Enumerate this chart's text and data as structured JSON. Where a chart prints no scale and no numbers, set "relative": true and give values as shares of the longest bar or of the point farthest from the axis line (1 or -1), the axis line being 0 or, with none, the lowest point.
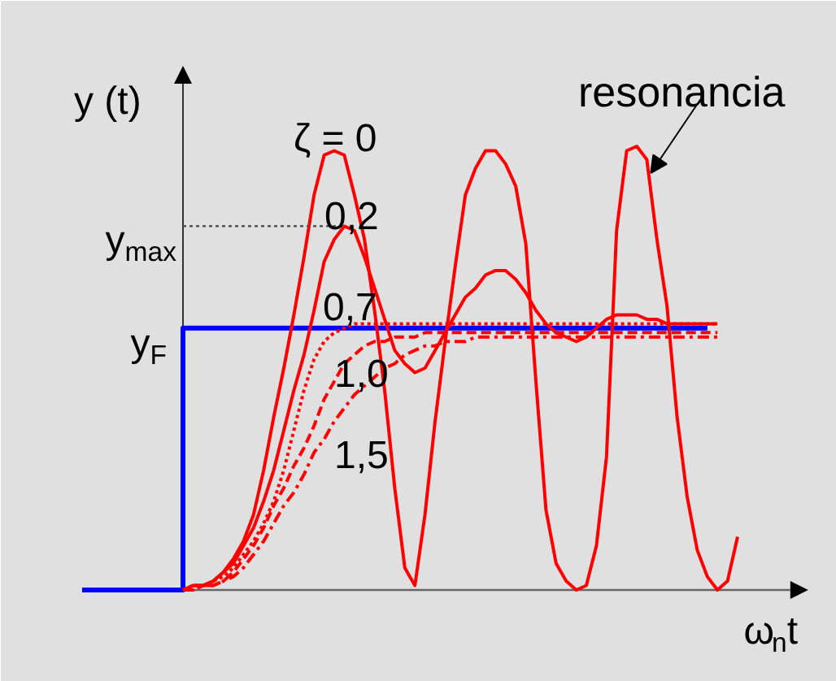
{
  "chart_data": {
    "type": "line",
    "relative": true,
    "xlabel": "ω$_{n}$t",
    "ylabel": "y (t)",
    "categories": [
      null,
      null,
      null,
      null,
      null,
      null,
      null,
      null,
      null,
      null,
      null,
      null,
      null,
      null,
      null,
      null,
      null,
      null,
      null,
      null,
      null,
      null,
      null,
      null,
      null,
      null,
      null,
      null,
      null,
      null,
      null,
      null,
      null,
      null,
      null,
      null,
      null,
      null,
      null,
      null,
      null,
      null,
      null,
      null,
      null,
      null,
      null,
      null,
      null,
      null,
      null,
      null,
      null,
      null,
      null,
      null,
      null,
      null,
      null,
      null,
      null,
      null,
      null,
      null,
      null,
      null
    ],
    "series": [
      {
        "type": "step",
        "color": "#0000ff",
        "line_style": "solid",
        "values": [
          0,
          0,
          0,
          0,
          0,
          0,
          0,
          0,
          0,
          0,
          0.59,
          0.59,
          0.59,
          0.59,
          0.59,
          0.59,
          0.59,
          0.59,
          0.59,
          0.59,
          0.59,
          0.59,
          0.59,
          0.59,
          0.59,
          0.59,
          0.59,
          0.59,
          0.59,
          0.59,
          0.59,
          0.59,
          0.59,
          0.59,
          0.59,
          0.59,
          0.59,
          0.59,
          0.59,
          0.59,
          0.59,
          0.59,
          0.59,
          0.59,
          0.59,
          0.59,
          0.59,
          0.59,
          0.59,
          0.59,
          0.59,
          0.59,
          0.59,
          0.59,
          0.59,
          0.59,
          0.59,
          0.59,
          0.59,
          0.59,
          0.59,
          0.59,
          0.59,
          null,
          null,
          null
        ]
      },
      {
        "name": "ζ = 0",
        "color": "#ff0000",
        "line_style": "solid",
        "values": [
          null,
          null,
          null,
          null,
          null,
          null,
          null,
          null,
          null,
          null,
          0,
          0.01,
          0.01,
          0.02,
          0.04,
          0.07,
          0.11,
          0.17,
          0.27,
          0.39,
          0.5,
          0.62,
          0.75,
          0.89,
          0.98,
          0.99,
          0.98,
          0.89,
          0.79,
          0.63,
          0.45,
          0.23,
          0.05,
          0.01,
          0.17,
          0.38,
          0.56,
          0.73,
          0.89,
          0.95,
          0.99,
          0.99,
          0.96,
          0.91,
          0.78,
          0.47,
          0.18,
          0.06,
          0.02,
          0,
          0.01,
          0.1,
          0.3,
          0.81,
          0.99,
          1.0,
          0.97,
          0.79,
          0.64,
          0.39,
          0.21,
          0.09,
          0.03,
          0,
          0.02,
          0.12
        ]
      },
      {
        "name": "0,2",
        "color": "#ff0000",
        "line_style": "solid",
        "values": [
          null,
          null,
          null,
          null,
          null,
          null,
          null,
          null,
          null,
          null,
          0,
          0.01,
          0.01,
          0.02,
          0.04,
          0.06,
          0.1,
          0.14,
          0.2,
          0.27,
          0.36,
          0.45,
          0.53,
          0.63,
          0.74,
          0.79,
          0.82,
          0.81,
          0.75,
          0.68,
          0.61,
          0.54,
          0.51,
          0.49,
          0.5,
          0.54,
          0.58,
          0.62,
          0.66,
          0.68,
          0.71,
          0.72,
          0.72,
          0.7,
          0.67,
          0.63,
          0.6,
          0.58,
          0.57,
          0.56,
          0.57,
          0.59,
          0.61,
          0.62,
          0.62,
          0.62,
          0.61,
          0.61,
          0.6,
          0.6,
          0.6,
          0.6,
          0.6,
          0.6,
          null,
          null
        ]
      },
      {
        "name": "0,7",
        "color": "#ff0000",
        "line_style": "dotted",
        "values": [
          null,
          null,
          null,
          null,
          null,
          null,
          null,
          null,
          null,
          null,
          0,
          0.01,
          0.01,
          0.02,
          0.03,
          0.05,
          0.08,
          0.11,
          0.15,
          0.2,
          0.27,
          0.36,
          0.45,
          0.52,
          0.56,
          0.58,
          0.59,
          0.6,
          0.6,
          0.6,
          0.6,
          0.6,
          0.6,
          0.6,
          0.6,
          0.6,
          0.6,
          0.6,
          0.6,
          0.6,
          0.6,
          0.6,
          0.6,
          0.6,
          0.6,
          0.6,
          0.6,
          0.6,
          0.6,
          0.6,
          0.6,
          0.6,
          0.6,
          0.6,
          0.6,
          0.6,
          0.6,
          0.6,
          0.6,
          0.6,
          0.6,
          0.6,
          0.6,
          0.6,
          null,
          null
        ]
      },
      {
        "name": "1,0",
        "color": "#ff0000",
        "line_style": "dashed",
        "values": [
          null,
          null,
          null,
          null,
          null,
          null,
          null,
          null,
          null,
          null,
          0,
          0,
          0.01,
          0.01,
          0.02,
          0.04,
          0.07,
          0.1,
          0.14,
          0.19,
          0.23,
          0.28,
          0.32,
          0.37,
          0.43,
          0.47,
          0.51,
          0.53,
          0.55,
          0.56,
          0.56,
          0.57,
          0.57,
          0.57,
          0.58,
          0.58,
          0.58,
          0.58,
          0.58,
          0.58,
          0.58,
          0.58,
          0.58,
          0.58,
          0.58,
          0.58,
          0.58,
          0.58,
          0.58,
          0.58,
          0.58,
          0.58,
          0.58,
          0.58,
          0.58,
          0.58,
          0.58,
          0.58,
          0.58,
          0.58,
          0.58,
          0.58,
          0.58,
          0.58,
          null,
          null
        ]
      },
      {
        "name": "1,5",
        "color": "#ff0000",
        "line_style": "dashdot",
        "values": [
          null,
          null,
          null,
          null,
          null,
          null,
          null,
          null,
          null,
          null,
          0,
          0,
          0.01,
          0.01,
          0.02,
          0.03,
          0.05,
          0.08,
          0.11,
          0.15,
          0.19,
          0.22,
          0.26,
          0.31,
          0.34,
          0.38,
          0.41,
          0.44,
          0.46,
          0.48,
          0.5,
          0.51,
          0.53,
          0.54,
          0.55,
          0.55,
          0.56,
          0.56,
          0.56,
          0.57,
          0.57,
          0.57,
          0.57,
          0.57,
          0.57,
          0.57,
          0.57,
          0.57,
          0.57,
          0.57,
          0.57,
          0.57,
          0.57,
          0.57,
          0.57,
          0.57,
          0.57,
          0.57,
          0.57,
          0.57,
          0.57,
          0.57,
          0.57,
          0.57,
          null,
          null
        ]
      }
    ],
    "ref_lines": [
      {
        "axis": "y",
        "value": 0.82,
        "label": "y$_{max}$",
        "color": "#555555",
        "line_style": "dotted"
      }
    ],
    "annotations": [
      "y$_{F}$",
      "resonancia"
    ]
  }
}
